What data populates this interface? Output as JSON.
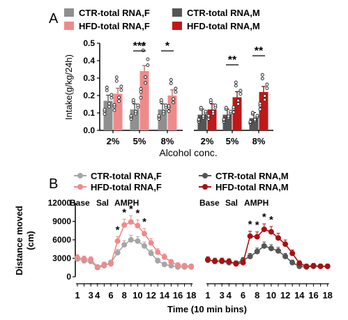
{
  "panel_a": {
    "label": "A",
    "legend": [
      {
        "label": "CTR-total RNA,F",
        "color": "#8f8f8f"
      },
      {
        "label": "CTR-total RNA,M",
        "color": "#555555"
      },
      {
        "label": "HFD-total RNA,F",
        "color": "#f08a8a"
      },
      {
        "label": "HFD-total RNA,M",
        "color": "#c01818"
      }
    ]
  },
  "panel_b": {
    "label": "B",
    "legend": [
      {
        "label": "CTR-total RNA,F",
        "color": "#a6a6a6"
      },
      {
        "label": "HFD-total RNA,F",
        "color": "#f08a8a"
      },
      {
        "label": "CTR-total RNA,M",
        "color": "#555555"
      },
      {
        "label": "HFD-total RNA,M",
        "color": "#a81010"
      }
    ],
    "phase_labels": {
      "base": "Base",
      "sal": "Sal",
      "amph": "AMPH"
    }
  },
  "chart_data": [
    {
      "type": "bar",
      "ylabel": "Intake(g/kg/24h)",
      "xlabel": "Alcohol conc.",
      "ylim": [
        0,
        0.5
      ],
      "yticks": [
        0.0,
        0.1,
        0.2,
        0.3,
        0.4,
        0.5
      ],
      "groups": [
        {
          "sex": "F",
          "categories": [
            "2%",
            "5%",
            "8%"
          ]
        },
        {
          "sex": "M",
          "categories": [
            "2%",
            "5%",
            "8%"
          ]
        }
      ],
      "series": [
        {
          "name": "CTR-total RNA,F",
          "values": [
            0.17,
            0.12,
            0.12
          ]
        },
        {
          "name": "HFD-total RNA,F",
          "values": [
            0.21,
            0.34,
            0.2
          ]
        },
        {
          "name": "CTR-total RNA,M",
          "values": [
            0.09,
            0.09,
            0.07
          ]
        },
        {
          "name": "HFD-total RNA,M",
          "values": [
            0.12,
            0.19,
            0.22
          ]
        }
      ],
      "significance": [
        {
          "group": "F",
          "category": "5%",
          "text": "***"
        },
        {
          "group": "F",
          "category": "8%",
          "text": "*"
        },
        {
          "group": "M",
          "category": "5%",
          "text": "**"
        },
        {
          "group": "M",
          "category": "8%",
          "text": "**"
        }
      ]
    },
    {
      "type": "line",
      "ylabel": "Distance moved\n(cm)",
      "xlabel": "Time (10 min bins)",
      "ylim": [
        0,
        12000
      ],
      "yticks": [
        0,
        3000,
        6000,
        9000,
        12000
      ],
      "xticks": [
        "1",
        "3",
        "4",
        "6",
        "8",
        "10",
        "12",
        "14",
        "16",
        "18"
      ],
      "x": [
        1,
        2,
        3,
        4,
        5,
        6,
        7,
        8,
        9,
        10,
        11,
        12,
        13,
        14,
        15,
        16,
        17,
        18
      ],
      "series": [
        {
          "name": "CTR-total RNA,F",
          "sex": "F",
          "values": [
            2900,
            2600,
            2500,
            1500,
            1800,
            2300,
            3900,
            5200,
            6000,
            5800,
            5000,
            3800,
            2600,
            2000,
            1800,
            1600,
            1600,
            1600
          ]
        },
        {
          "name": "HFD-total RNA,F",
          "sex": "F",
          "values": [
            3100,
            2900,
            2800,
            1600,
            2000,
            2100,
            5800,
            8400,
            8900,
            8300,
            7000,
            5500,
            4000,
            3200,
            2400,
            1900,
            1800,
            1700
          ]
        },
        {
          "name": "CTR-total RNA,M",
          "sex": "M",
          "values": [
            2700,
            2600,
            2500,
            2300,
            2200,
            2700,
            3300,
            4100,
            5000,
            4600,
            4200,
            3300,
            2300,
            1700,
            1600,
            1700,
            1700,
            1700
          ]
        },
        {
          "name": "HFD-total RNA,M",
          "sex": "M",
          "values": [
            2800,
            2500,
            2600,
            2500,
            2100,
            2300,
            6600,
            6500,
            7700,
            7300,
            6300,
            5300,
            3800,
            2200,
            1700,
            1800,
            1700,
            1700
          ]
        }
      ],
      "significance": [
        {
          "sex": "F",
          "x": 7,
          "text": "*"
        },
        {
          "sex": "F",
          "x": 8,
          "text": "*"
        },
        {
          "sex": "F",
          "x": 9,
          "text": "*"
        },
        {
          "sex": "F",
          "x": 10,
          "text": "*"
        },
        {
          "sex": "F",
          "x": 11,
          "text": "*"
        },
        {
          "sex": "M",
          "x": 7,
          "text": "*"
        },
        {
          "sex": "M",
          "x": 8,
          "text": "*"
        },
        {
          "sex": "M",
          "x": 9,
          "text": "*"
        },
        {
          "sex": "M",
          "x": 10,
          "text": "*"
        }
      ]
    }
  ]
}
